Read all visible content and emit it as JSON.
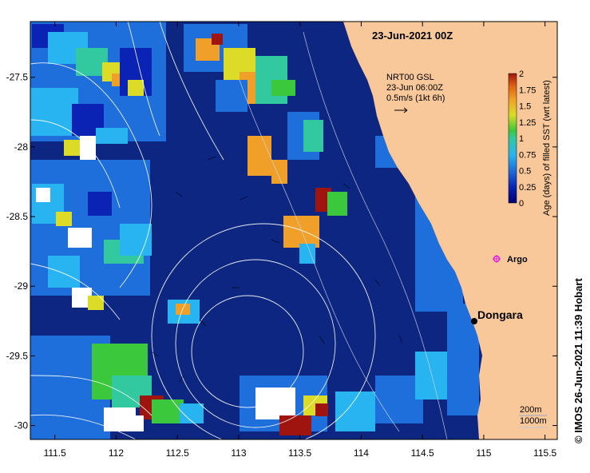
{
  "title": "23-Jun-2021 00Z",
  "current_info": {
    "line1": "NRT00 GSL",
    "line2": "23-Jun 06:00Z",
    "line3": "0.5m/s (1kt 6h)"
  },
  "axes": {
    "x_ticks": [
      "111.5",
      "112",
      "112.5",
      "113",
      "113.5",
      "114",
      "114.5",
      "115",
      "115.5"
    ],
    "y_ticks": [
      "-27.5",
      "-28",
      "-28.5",
      "-29",
      "-29.5",
      "-30"
    ],
    "x_range": [
      111.3,
      115.6
    ],
    "y_range": [
      -30.1,
      -27.1
    ]
  },
  "colorbar": {
    "label": "Age (days) of filled SST (wrt latest)",
    "ticks": [
      "0",
      "0.25",
      "0.5",
      "0.75",
      "1",
      "1.25",
      "1.5",
      "1.75",
      "2"
    ],
    "colors": [
      "#000070",
      "#0a23b4",
      "#1e6edc",
      "#28b4f0",
      "#32c8a0",
      "#3cc83c",
      "#dcdc28",
      "#f0a028",
      "#e06414",
      "#a01410"
    ]
  },
  "places": {
    "dongara": {
      "name": "Dongara",
      "lon": 114.93,
      "lat": -29.26
    },
    "argo": {
      "name": "Argo",
      "lon": 115.13,
      "lat": -28.85
    }
  },
  "isobaths": [
    "200m",
    "1000m"
  ],
  "credit": "© IMOS 26-Jun-2021 11:39 Hobart",
  "colors": {
    "ocean": "#0f2a8c",
    "land": "#f8c89a",
    "argo_marker": "#e020e0",
    "contour": "#ffffff"
  }
}
